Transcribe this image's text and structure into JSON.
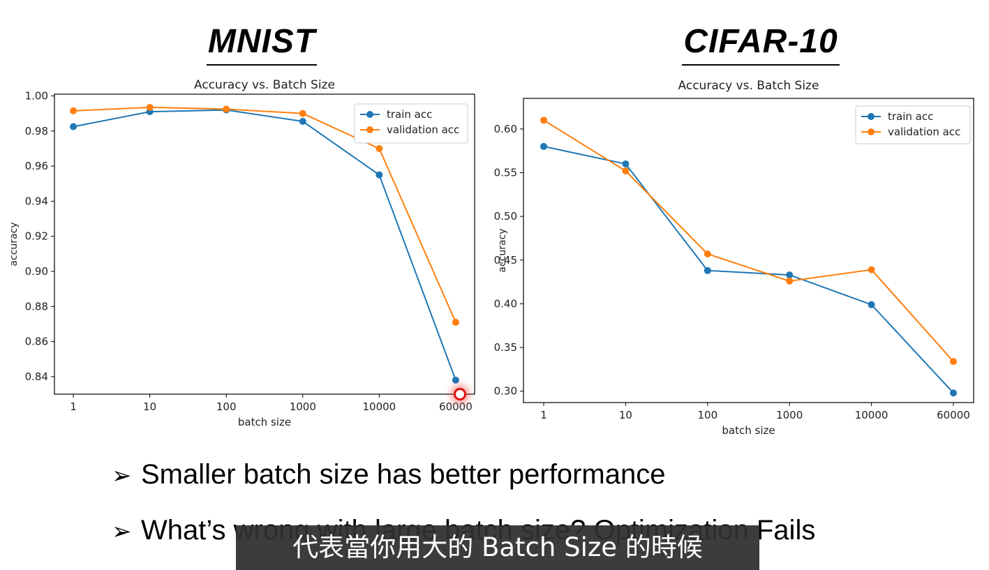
{
  "headings": {
    "left": "MNIST",
    "right": "CIFAR-10"
  },
  "bullets": [
    {
      "marker": "➢",
      "text": "Smaller batch size has better performance"
    },
    {
      "marker": "➢",
      "text": "What’s wrong with large batch size?   Optimization Fails"
    }
  ],
  "subtitle": "代表當你用大的 Batch Size 的時候",
  "colors": {
    "train": "#1f77b4",
    "validation": "#ff7f0e",
    "cursor": "#e01010"
  },
  "chart_data": [
    {
      "type": "line",
      "title": "Accuracy vs. Batch Size",
      "xlabel": "batch size",
      "ylabel": "accuracy",
      "categories": [
        "1",
        "10",
        "100",
        "1000",
        "10000",
        "60000"
      ],
      "yticks": [
        "0.84",
        "0.86",
        "0.88",
        "0.90",
        "0.92",
        "0.94",
        "0.96",
        "0.98",
        "1.00"
      ],
      "ylim": [
        0.83,
        1.001
      ],
      "legend_position": "top-right",
      "series": [
        {
          "name": "train acc",
          "color": "#1f77b4",
          "values": [
            0.9825,
            0.991,
            0.992,
            0.9855,
            0.955,
            0.838
          ]
        },
        {
          "name": "validation acc",
          "color": "#ff7f0e",
          "values": [
            0.9915,
            0.9935,
            0.9925,
            0.99,
            0.97,
            0.871
          ]
        }
      ]
    },
    {
      "type": "line",
      "title": "Accuracy vs. Batch Size",
      "xlabel": "batch size",
      "ylabel": "accuracy",
      "categories": [
        "1",
        "10",
        "100",
        "1000",
        "10000",
        "60000"
      ],
      "yticks": [
        "0.30",
        "0.35",
        "0.40",
        "0.45",
        "0.50",
        "0.55",
        "0.60"
      ],
      "ylim": [
        0.287,
        0.635
      ],
      "legend_position": "top-right",
      "series": [
        {
          "name": "train acc",
          "color": "#1f77b4",
          "values": [
            0.58,
            0.56,
            0.438,
            0.433,
            0.399,
            0.298
          ]
        },
        {
          "name": "validation acc",
          "color": "#ff7f0e",
          "values": [
            0.61,
            0.552,
            0.457,
            0.426,
            0.439,
            0.334
          ]
        }
      ]
    }
  ]
}
